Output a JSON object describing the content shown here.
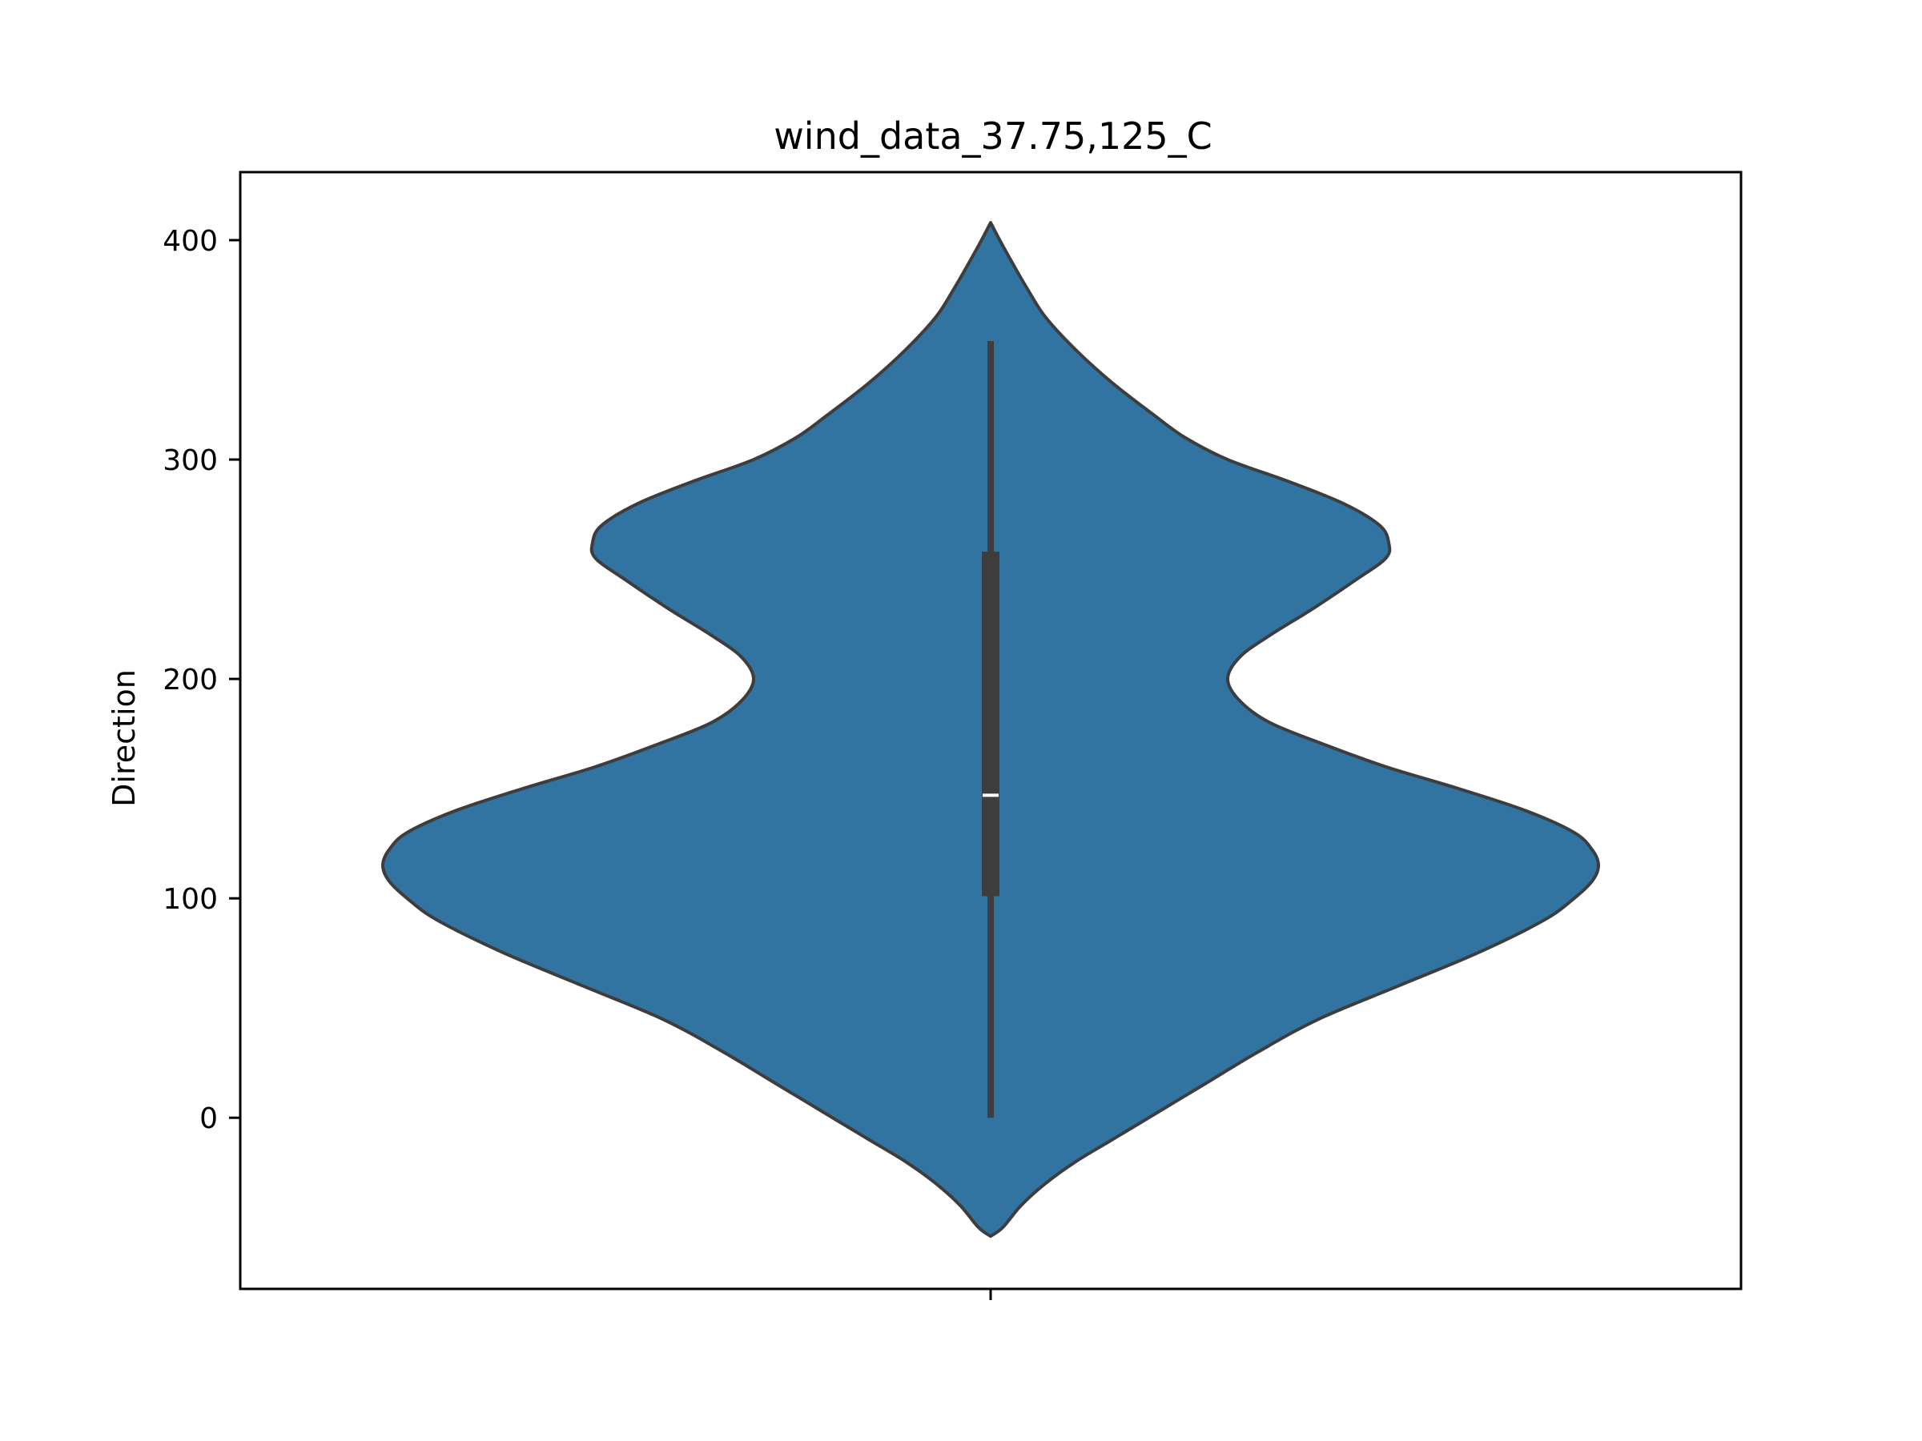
{
  "chart_data": {
    "type": "violin",
    "title": "wind_data_37.75,125_C",
    "xlabel": "",
    "ylabel": "Direction",
    "ylim": [
      -78,
      431
    ],
    "yticks": [
      0,
      100,
      200,
      300,
      400
    ],
    "grid": false,
    "legend": "none",
    "series": [
      {
        "fill_color": "#3274a1",
        "edge_color": "#3d3d3d",
        "density": [
          {
            "y": -54,
            "w": 0.0
          },
          {
            "y": -50,
            "w": 0.02
          },
          {
            "y": -40,
            "w": 0.05
          },
          {
            "y": -30,
            "w": 0.09
          },
          {
            "y": -20,
            "w": 0.14
          },
          {
            "y": -10,
            "w": 0.2
          },
          {
            "y": 0,
            "w": 0.26
          },
          {
            "y": 15,
            "w": 0.35
          },
          {
            "y": 30,
            "w": 0.44
          },
          {
            "y": 45,
            "w": 0.54
          },
          {
            "y": 60,
            "w": 0.67
          },
          {
            "y": 75,
            "w": 0.8
          },
          {
            "y": 90,
            "w": 0.91
          },
          {
            "y": 100,
            "w": 0.96
          },
          {
            "y": 108,
            "w": 0.99
          },
          {
            "y": 115,
            "w": 1.0
          },
          {
            "y": 122,
            "w": 0.99
          },
          {
            "y": 130,
            "w": 0.96
          },
          {
            "y": 140,
            "w": 0.88
          },
          {
            "y": 150,
            "w": 0.77
          },
          {
            "y": 160,
            "w": 0.65
          },
          {
            "y": 170,
            "w": 0.55
          },
          {
            "y": 180,
            "w": 0.46
          },
          {
            "y": 190,
            "w": 0.41
          },
          {
            "y": 200,
            "w": 0.39
          },
          {
            "y": 210,
            "w": 0.41
          },
          {
            "y": 220,
            "w": 0.46
          },
          {
            "y": 232,
            "w": 0.53
          },
          {
            "y": 245,
            "w": 0.6
          },
          {
            "y": 255,
            "w": 0.65
          },
          {
            "y": 262,
            "w": 0.655
          },
          {
            "y": 270,
            "w": 0.64
          },
          {
            "y": 280,
            "w": 0.58
          },
          {
            "y": 290,
            "w": 0.49
          },
          {
            "y": 300,
            "w": 0.39
          },
          {
            "y": 310,
            "w": 0.32
          },
          {
            "y": 320,
            "w": 0.27
          },
          {
            "y": 335,
            "w": 0.2
          },
          {
            "y": 350,
            "w": 0.14
          },
          {
            "y": 365,
            "w": 0.09
          },
          {
            "y": 378,
            "w": 0.06
          },
          {
            "y": 390,
            "w": 0.035
          },
          {
            "y": 400,
            "w": 0.015
          },
          {
            "y": 408,
            "w": 0.0
          }
        ],
        "box": {
          "whisker_low": 0,
          "q1": 101,
          "median": 147,
          "q3": 258,
          "whisker_high": 354
        }
      }
    ]
  }
}
